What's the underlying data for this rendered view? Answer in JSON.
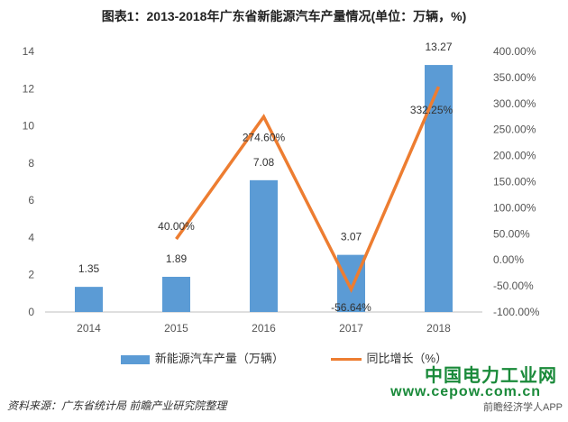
{
  "chart_data": {
    "type": "bar",
    "title": "图表1：2013-2018年广东省新能源汽车产量情况(单位：万辆，%)",
    "categories": [
      "2014",
      "2015",
      "2016",
      "2017",
      "2018"
    ],
    "series": [
      {
        "name": "新能源汽车产量（万辆）",
        "type": "bar",
        "axis": "left",
        "values": [
          1.35,
          1.89,
          7.08,
          3.07,
          13.27
        ],
        "labels": [
          "1.35",
          "1.89",
          "7.08",
          "3.07",
          "13.27"
        ],
        "color": "#5b9bd5"
      },
      {
        "name": "同比增长（%）",
        "type": "line",
        "axis": "right",
        "values": [
          null,
          40.0,
          274.6,
          -56.64,
          332.25
        ],
        "labels": [
          "",
          "40.00%",
          "274.60%",
          "-56.64%",
          "332.25%"
        ],
        "color": "#ed7d31"
      }
    ],
    "y_left": {
      "min": 0,
      "max": 14,
      "ticks": [
        "0",
        "2",
        "4",
        "6",
        "8",
        "10",
        "12",
        "14"
      ]
    },
    "y_right": {
      "min": -100,
      "max": 400,
      "ticks": [
        "-100.00%",
        "-50.00%",
        "0.00%",
        "50.00%",
        "100.00%",
        "150.00%",
        "200.00%",
        "250.00%",
        "300.00%",
        "350.00%",
        "400.00%"
      ]
    },
    "grid": false,
    "legend_position": "bottom"
  },
  "watermark": {
    "brand": "中国电力工业网",
    "url": "www.cepow.com.cn"
  },
  "source": "资料来源：广东省统计局 前瞻产业研究院整理",
  "app_tag": "前瞻经济学人APP"
}
